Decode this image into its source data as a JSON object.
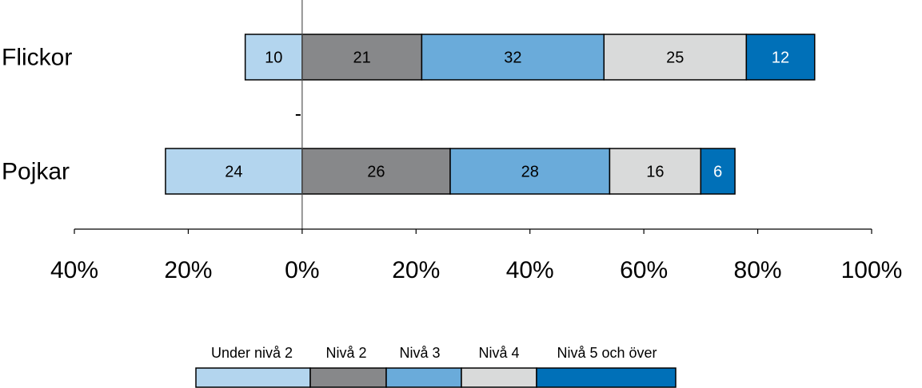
{
  "chart_data": {
    "type": "bar",
    "orientation": "horizontal",
    "stacked": "diverging",
    "categories": [
      "Flickor",
      "Pojkar"
    ],
    "series": [
      {
        "name": "Under nivå 2",
        "values": [
          10,
          24
        ],
        "color": "#b3d5ee",
        "label_color": "#000000",
        "direction": "negative"
      },
      {
        "name": "Nivå 2",
        "values": [
          21,
          26
        ],
        "color": "#87888a",
        "label_color": "#000000",
        "direction": "positive"
      },
      {
        "name": "Nivå 3",
        "values": [
          32,
          28
        ],
        "color": "#6aabda",
        "label_color": "#000000",
        "direction": "positive"
      },
      {
        "name": "Nivå 4",
        "values": [
          25,
          16
        ],
        "color": "#d9dada",
        "label_color": "#000000",
        "direction": "positive"
      },
      {
        "name": "Nivå 5 och över",
        "values": [
          12,
          6
        ],
        "color": "#0070b8",
        "label_color": "#ffffff",
        "direction": "positive"
      }
    ],
    "xlim": [
      -40,
      100
    ],
    "xticks": [
      -40,
      -20,
      0,
      20,
      40,
      60,
      80,
      100
    ],
    "xtick_labels": [
      "40%",
      "20%",
      "0%",
      "20%",
      "40%",
      "60%",
      "80%",
      "100%"
    ],
    "title": "",
    "xlabel": "",
    "ylabel": "",
    "grid": false,
    "legend_position": "bottom"
  }
}
